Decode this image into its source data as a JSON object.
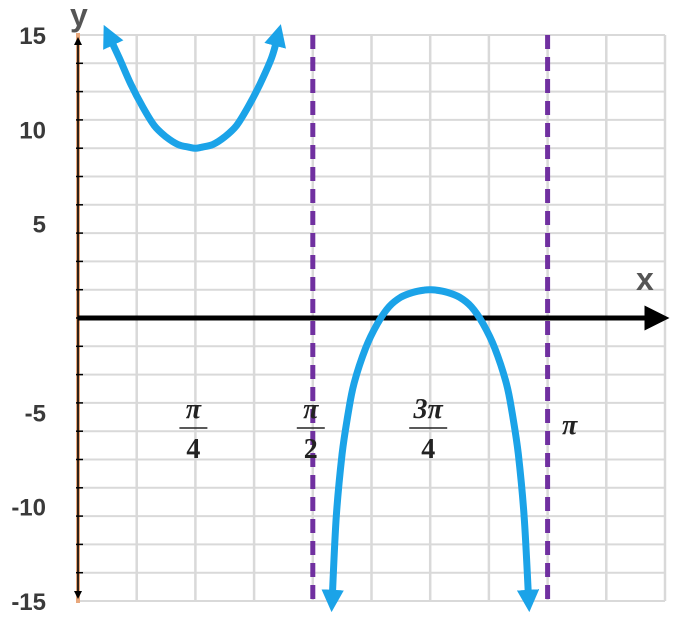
{
  "chart_data": {
    "type": "line",
    "title": "",
    "xlabel": "x",
    "ylabel": "y",
    "xlim": [
      0,
      3.927
    ],
    "ylim": [
      -15,
      15
    ],
    "grid": true,
    "y_ticks": [
      {
        "value": 15,
        "label": "15"
      },
      {
        "value": 10,
        "label": "10"
      },
      {
        "value": 5,
        "label": "5"
      },
      {
        "value": -5,
        "label": "-5"
      },
      {
        "value": -10,
        "label": "-10"
      },
      {
        "value": -15,
        "label": "-15"
      }
    ],
    "x_ticks": [
      {
        "value": 0.7854,
        "num": "π",
        "den": "4"
      },
      {
        "value": 1.5708,
        "num": "π",
        "den": "2"
      },
      {
        "value": 2.3562,
        "num": "3π",
        "den": "4"
      },
      {
        "value": 3.1416,
        "label": "π"
      }
    ],
    "asymptotes": [
      1.5708,
      3.1416
    ],
    "series": [
      {
        "color": "#1ba3e8",
        "segments": [
          {
            "x": [
              0.2042,
              0.2749,
              0.3534,
              0.432,
              0.5105,
              0.589,
              0.6676,
              0.7461,
              0.7854,
              0.8247,
              0.9032,
              0.9817,
              1.0603,
              1.1388,
              1.2174,
              1.2959,
              1.338
            ],
            "y": [
              15.0,
              13.8,
              12.4,
              11.2,
              10.2,
              9.6,
              9.2,
              9.05,
              9.0,
              9.05,
              9.2,
              9.6,
              10.2,
              11.2,
              12.4,
              13.8,
              15.0
            ],
            "arrows": [
              "start",
              "end"
            ]
          },
          {
            "x": [
              1.7,
              1.7279,
              1.7671,
              1.8064,
              1.8457,
              1.9242,
              2.0028,
              2.0813,
              2.1598,
              2.2384,
              2.3169,
              2.3562,
              2.3955,
              2.474,
              2.5525,
              2.6311,
              2.7096,
              2.7882,
              2.8667,
              2.906,
              2.9453,
              2.9845,
              3.015
            ],
            "y": [
              -15.0,
              -10.5,
              -7.2,
              -5.1,
              -3.5,
              -1.6,
              -0.3,
              0.6,
              1.1,
              1.35,
              1.48,
              1.5,
              1.48,
              1.35,
              1.1,
              0.6,
              -0.3,
              -1.6,
              -3.5,
              -5.1,
              -7.2,
              -10.5,
              -15.0
            ],
            "arrows": [
              "start",
              "end"
            ]
          }
        ]
      }
    ]
  },
  "colors": {
    "curve": "#1ba3e8",
    "asymptote": "#7030a0",
    "grid": "#d9d9d9",
    "axis": "#000000",
    "y_axis_accent": "#e8a87c"
  }
}
